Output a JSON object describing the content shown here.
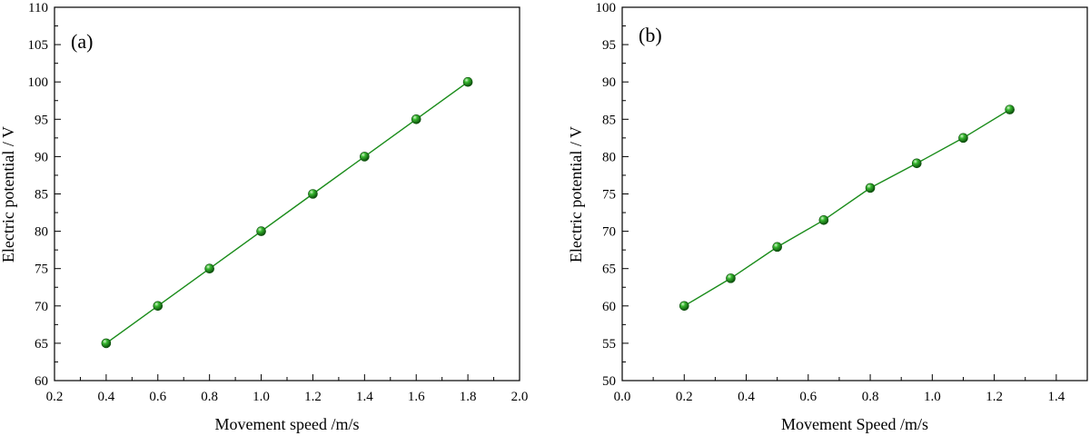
{
  "chart_data": [
    {
      "type": "line",
      "panel_label": "(a)",
      "xlabel": "Movement speed /m/s",
      "ylabel": "Electric potential / V",
      "xlim": [
        0.2,
        2.0
      ],
      "ylim": [
        60,
        110
      ],
      "xticks": [
        "0.2",
        "0.4",
        "0.6",
        "0.8",
        "1.0",
        "1.2",
        "1.4",
        "1.6",
        "1.8",
        "2.0"
      ],
      "yticks": [
        "60",
        "65",
        "70",
        "75",
        "80",
        "85",
        "90",
        "95",
        "100",
        "105",
        "110"
      ],
      "grid": false,
      "series": [
        {
          "x": [
            0.4,
            0.6,
            0.8,
            1.0,
            1.2,
            1.4,
            1.6,
            1.8
          ],
          "y": [
            65,
            70,
            75,
            80,
            85,
            90,
            95,
            100
          ],
          "color": "#1a8c1a",
          "marker": "sphere"
        }
      ]
    },
    {
      "type": "line",
      "panel_label": "(b)",
      "xlabel": "Movement Speed /m/s",
      "ylabel": "Electric potential / V",
      "xlim": [
        0.0,
        1.5
      ],
      "ylim": [
        50,
        100
      ],
      "xticks": [
        "0.0",
        "0.2",
        "0.4",
        "0.6",
        "0.8",
        "1.0",
        "1.2",
        "1.4"
      ],
      "yticks": [
        "50",
        "55",
        "60",
        "65",
        "70",
        "75",
        "80",
        "85",
        "90",
        "95",
        "100"
      ],
      "grid": false,
      "series": [
        {
          "x": [
            0.2,
            0.35,
            0.5,
            0.65,
            0.8,
            0.95,
            1.1,
            1.25
          ],
          "y": [
            60.0,
            63.7,
            67.9,
            71.5,
            75.8,
            79.1,
            82.5,
            86.3
          ],
          "color": "#1a8c1a",
          "marker": "sphere"
        }
      ]
    }
  ]
}
